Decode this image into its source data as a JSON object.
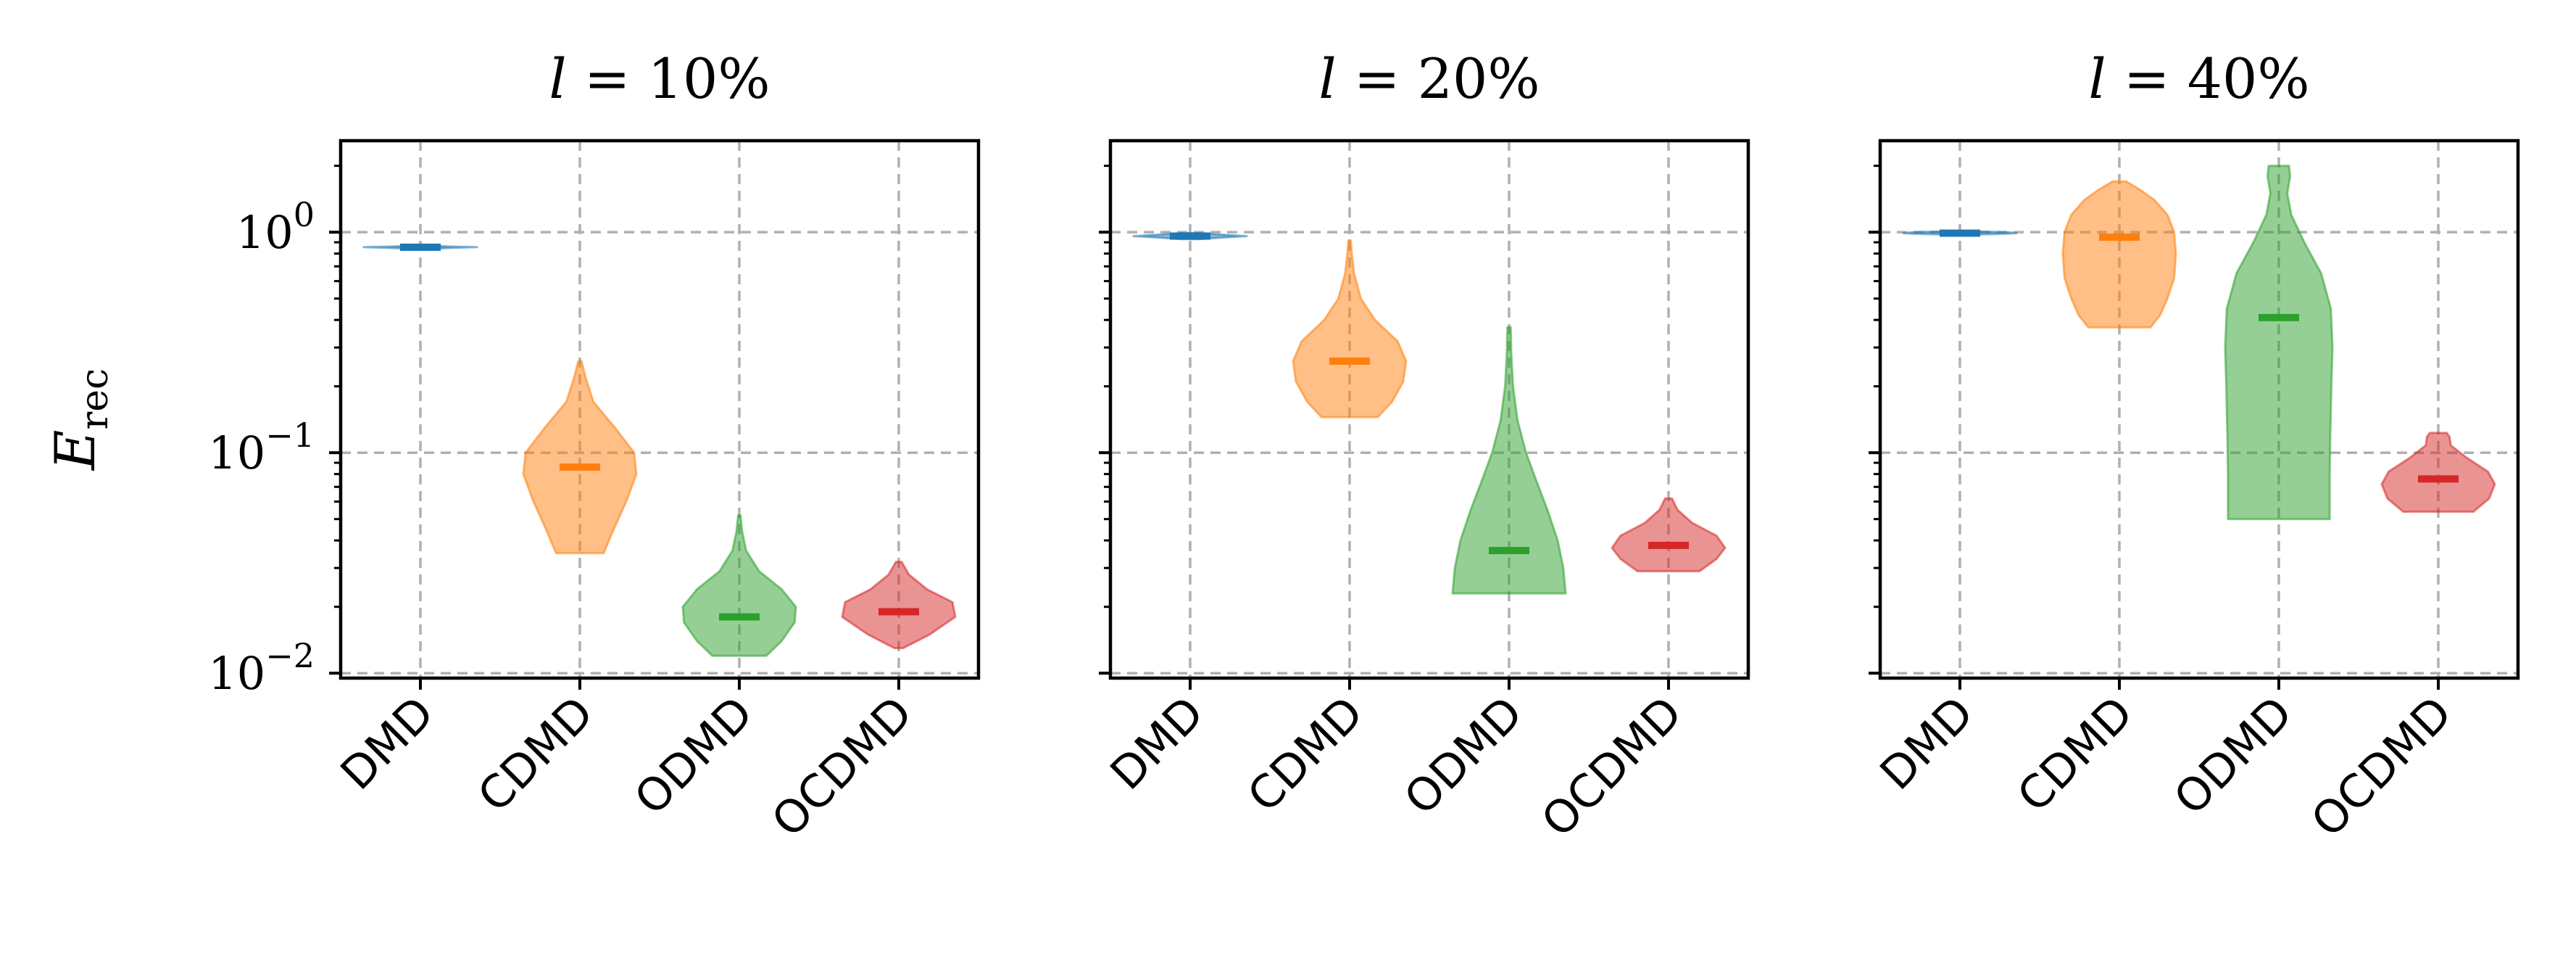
{
  "chart_data": {
    "type": "violin",
    "ylabel": "E_rec",
    "yscale": "log",
    "ylim": [
      0.0095,
      2.6
    ],
    "yticks": [
      {
        "value": 1,
        "label": "10",
        "exp": "0"
      },
      {
        "value": 0.1,
        "label": "10",
        "exp": "−1"
      },
      {
        "value": 0.01,
        "label": "10",
        "exp": "−2"
      }
    ],
    "grid": true,
    "categories": [
      "DMD",
      "CDMD",
      "ODMD",
      "OCDMD"
    ],
    "colors": {
      "DMD": "#1f77b4",
      "CDMD": "#ff7f0e",
      "ODMD": "#2ca02c",
      "OCDMD": "#d62728"
    },
    "panels": [
      {
        "title_var": "l",
        "title_rest": " = 10%",
        "series": [
          {
            "category": "DMD",
            "min": 0.84,
            "max": 0.87,
            "median": 0.855,
            "profile": [
              [
                0.84,
                0.1
              ],
              [
                0.85,
                0.6
              ],
              [
                0.855,
                1.0
              ],
              [
                0.86,
                0.6
              ],
              [
                0.87,
                0.1
              ]
            ]
          },
          {
            "category": "CDMD",
            "min": 0.035,
            "max": 0.26,
            "median": 0.086,
            "profile": [
              [
                0.035,
                0.42
              ],
              [
                0.045,
                0.6
              ],
              [
                0.06,
                0.82
              ],
              [
                0.08,
                1.0
              ],
              [
                0.1,
                0.96
              ],
              [
                0.13,
                0.62
              ],
              [
                0.17,
                0.24
              ],
              [
                0.22,
                0.1
              ],
              [
                0.26,
                0.03
              ]
            ]
          },
          {
            "category": "ODMD",
            "min": 0.012,
            "max": 0.052,
            "median": 0.018,
            "profile": [
              [
                0.012,
                0.48
              ],
              [
                0.014,
                0.75
              ],
              [
                0.017,
                0.98
              ],
              [
                0.02,
                1.0
              ],
              [
                0.024,
                0.75
              ],
              [
                0.029,
                0.35
              ],
              [
                0.036,
                0.12
              ],
              [
                0.044,
                0.05
              ],
              [
                0.052,
                0.02
              ]
            ]
          },
          {
            "category": "OCDMD",
            "min": 0.013,
            "max": 0.032,
            "median": 0.019,
            "profile": [
              [
                0.013,
                0.08
              ],
              [
                0.015,
                0.55
              ],
              [
                0.018,
                1.0
              ],
              [
                0.021,
                0.95
              ],
              [
                0.024,
                0.5
              ],
              [
                0.028,
                0.18
              ],
              [
                0.032,
                0.05
              ]
            ]
          }
        ]
      },
      {
        "title_var": "l",
        "title_rest": " = 20%",
        "series": [
          {
            "category": "DMD",
            "min": 0.93,
            "max": 0.99,
            "median": 0.96,
            "profile": [
              [
                0.93,
                0.15
              ],
              [
                0.95,
                0.7
              ],
              [
                0.96,
                1.0
              ],
              [
                0.97,
                0.7
              ],
              [
                0.99,
                0.15
              ]
            ]
          },
          {
            "category": "CDMD",
            "min": 0.145,
            "max": 0.92,
            "median": 0.26,
            "profile": [
              [
                0.145,
                0.5
              ],
              [
                0.17,
                0.75
              ],
              [
                0.21,
                0.95
              ],
              [
                0.26,
                1.0
              ],
              [
                0.32,
                0.85
              ],
              [
                0.4,
                0.45
              ],
              [
                0.5,
                0.2
              ],
              [
                0.65,
                0.08
              ],
              [
                0.8,
                0.04
              ],
              [
                0.92,
                0.02
              ]
            ]
          },
          {
            "category": "ODMD",
            "min": 0.023,
            "max": 0.37,
            "median": 0.036,
            "profile": [
              [
                0.023,
                1.0
              ],
              [
                0.03,
                0.96
              ],
              [
                0.04,
                0.86
              ],
              [
                0.055,
                0.68
              ],
              [
                0.075,
                0.48
              ],
              [
                0.1,
                0.3
              ],
              [
                0.14,
                0.15
              ],
              [
                0.2,
                0.07
              ],
              [
                0.28,
                0.04
              ],
              [
                0.37,
                0.03
              ]
            ]
          },
          {
            "category": "OCDMD",
            "min": 0.029,
            "max": 0.062,
            "median": 0.038,
            "profile": [
              [
                0.029,
                0.55
              ],
              [
                0.033,
                0.85
              ],
              [
                0.037,
                1.0
              ],
              [
                0.042,
                0.85
              ],
              [
                0.048,
                0.42
              ],
              [
                0.055,
                0.16
              ],
              [
                0.062,
                0.06
              ]
            ]
          }
        ]
      },
      {
        "title_var": "l",
        "title_rest": " = 40%",
        "series": [
          {
            "category": "DMD",
            "min": 0.975,
            "max": 1.01,
            "median": 0.99,
            "profile": [
              [
                0.975,
                0.2
              ],
              [
                0.985,
                0.85
              ],
              [
                0.99,
                1.0
              ],
              [
                1.0,
                0.85
              ],
              [
                1.01,
                0.2
              ]
            ]
          },
          {
            "category": "CDMD",
            "min": 0.37,
            "max": 1.7,
            "median": 0.95,
            "profile": [
              [
                0.37,
                0.55
              ],
              [
                0.42,
                0.72
              ],
              [
                0.5,
                0.85
              ],
              [
                0.62,
                0.97
              ],
              [
                0.8,
                1.0
              ],
              [
                1.0,
                0.97
              ],
              [
                1.2,
                0.85
              ],
              [
                1.4,
                0.62
              ],
              [
                1.55,
                0.38
              ],
              [
                1.7,
                0.12
              ]
            ]
          },
          {
            "category": "ODMD",
            "min": 0.05,
            "max": 2.0,
            "median": 0.41,
            "profile": [
              [
                0.05,
                0.9
              ],
              [
                0.08,
                0.9
              ],
              [
                0.12,
                0.91
              ],
              [
                0.2,
                0.93
              ],
              [
                0.3,
                0.95
              ],
              [
                0.45,
                0.92
              ],
              [
                0.65,
                0.75
              ],
              [
                0.9,
                0.45
              ],
              [
                1.2,
                0.22
              ],
              [
                1.5,
                0.15
              ],
              [
                1.8,
                0.2
              ],
              [
                2.0,
                0.18
              ]
            ]
          },
          {
            "category": "OCDMD",
            "min": 0.054,
            "max": 0.123,
            "median": 0.076,
            "profile": [
              [
                0.054,
                0.62
              ],
              [
                0.062,
                0.9
              ],
              [
                0.072,
                1.0
              ],
              [
                0.082,
                0.88
              ],
              [
                0.095,
                0.5
              ],
              [
                0.108,
                0.22
              ],
              [
                0.118,
                0.2
              ],
              [
                0.123,
                0.15
              ]
            ]
          }
        ]
      }
    ]
  }
}
